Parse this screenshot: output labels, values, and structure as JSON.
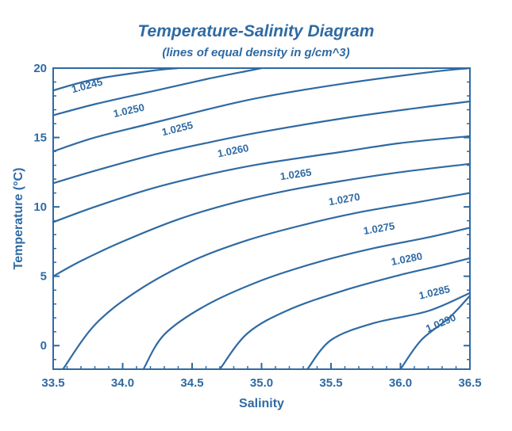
{
  "chart_data": {
    "type": "line",
    "title": "Temperature-Salinity Diagram",
    "subtitle": "(lines of equal density in g/cm^3)",
    "xlabel": "Salinity",
    "ylabel": "Temperature (°C)",
    "xlim": [
      33.5,
      36.5
    ],
    "ylim": [
      -1.7,
      20
    ],
    "x_ticks": [
      "33.5",
      "34.0",
      "34.5",
      "35.0",
      "35.5",
      "36.0",
      "36.5"
    ],
    "x_tick_values": [
      33.5,
      34.0,
      34.5,
      35.0,
      35.5,
      36.0,
      36.5
    ],
    "y_ticks": [
      "0",
      "5",
      "10",
      "15",
      "20"
    ],
    "y_tick_values": [
      0,
      5,
      10,
      15,
      20
    ],
    "grid": false,
    "color": "#2f6aa3",
    "series": [
      {
        "name": "1.0245",
        "label_at": [
          33.75,
          18.5
        ],
        "points": [
          [
            33.5,
            18.4
          ],
          [
            33.8,
            19.2
          ],
          [
            34.2,
            19.8
          ],
          [
            34.4,
            20.0
          ]
        ]
      },
      {
        "name": "1.0250",
        "label_at": [
          34.05,
          16.7
        ],
        "points": [
          [
            33.5,
            16.6
          ],
          [
            33.8,
            17.4
          ],
          [
            34.2,
            18.3
          ],
          [
            34.6,
            19.2
          ],
          [
            34.9,
            19.8
          ],
          [
            35.0,
            20.0
          ]
        ]
      },
      {
        "name": "1.0255",
        "label_at": [
          34.4,
          15.4
        ],
        "points": [
          [
            33.5,
            14.0
          ],
          [
            33.8,
            15.0
          ],
          [
            34.2,
            16.0
          ],
          [
            34.6,
            17.0
          ],
          [
            35.0,
            17.9
          ],
          [
            35.6,
            18.9
          ],
          [
            36.2,
            19.7
          ],
          [
            36.5,
            20.0
          ]
        ]
      },
      {
        "name": "1.0260",
        "label_at": [
          34.8,
          13.8
        ],
        "points": [
          [
            33.5,
            11.7
          ],
          [
            33.8,
            12.6
          ],
          [
            34.2,
            13.7
          ],
          [
            34.6,
            14.6
          ],
          [
            35.0,
            15.4
          ],
          [
            35.6,
            16.4
          ],
          [
            36.1,
            17.1
          ],
          [
            36.5,
            17.6
          ]
        ]
      },
      {
        "name": "1.0265",
        "label_at": [
          35.25,
          12.1
        ],
        "points": [
          [
            33.5,
            8.9
          ],
          [
            33.8,
            10.0
          ],
          [
            34.2,
            11.3
          ],
          [
            34.6,
            12.3
          ],
          [
            35.0,
            13.1
          ],
          [
            35.6,
            14.0
          ],
          [
            36.0,
            14.6
          ],
          [
            36.5,
            15.1
          ]
        ]
      },
      {
        "name": "1.0270",
        "label_at": [
          35.6,
          10.3
        ],
        "points": [
          [
            33.5,
            5.0
          ],
          [
            33.7,
            6.1
          ],
          [
            34.0,
            7.5
          ],
          [
            34.4,
            9.1
          ],
          [
            34.8,
            10.3
          ],
          [
            35.2,
            11.2
          ],
          [
            35.6,
            11.9
          ],
          [
            36.0,
            12.5
          ],
          [
            36.5,
            13.1
          ]
        ]
      },
      {
        "name": "1.0275",
        "label_at": [
          35.85,
          8.2
        ],
        "points": [
          [
            33.57,
            -1.7
          ],
          [
            33.8,
            1.5
          ],
          [
            34.1,
            3.9
          ],
          [
            34.5,
            6.1
          ],
          [
            34.9,
            7.6
          ],
          [
            35.3,
            8.7
          ],
          [
            35.7,
            9.6
          ],
          [
            36.1,
            10.3
          ],
          [
            36.5,
            11.0
          ]
        ]
      },
      {
        "name": "1.0280",
        "label_at": [
          36.05,
          6.0
        ],
        "points": [
          [
            34.15,
            -1.7
          ],
          [
            34.3,
            0.8
          ],
          [
            34.6,
            2.9
          ],
          [
            35.0,
            4.7
          ],
          [
            35.4,
            6.0
          ],
          [
            35.8,
            7.0
          ],
          [
            36.2,
            7.8
          ],
          [
            36.5,
            8.5
          ]
        ]
      },
      {
        "name": "1.0285",
        "label_at": [
          36.25,
          3.6
        ],
        "points": [
          [
            34.7,
            -1.7
          ],
          [
            34.9,
            0.9
          ],
          [
            35.2,
            2.6
          ],
          [
            35.6,
            4.0
          ],
          [
            36.0,
            5.1
          ],
          [
            36.3,
            5.8
          ],
          [
            36.5,
            6.3
          ]
        ]
      },
      {
        "name": "1.0290",
        "label_at": [
          36.3,
          1.4
        ],
        "points": [
          [
            35.33,
            -1.7
          ],
          [
            35.5,
            0.4
          ],
          [
            35.8,
            1.6
          ],
          [
            36.2,
            2.5
          ],
          [
            36.5,
            3.8
          ]
        ]
      },
      {
        "name": "",
        "points": [
          [
            36.0,
            -1.7
          ],
          [
            36.15,
            0.4
          ],
          [
            36.35,
            2.0
          ],
          [
            36.5,
            3.6
          ]
        ]
      }
    ]
  }
}
